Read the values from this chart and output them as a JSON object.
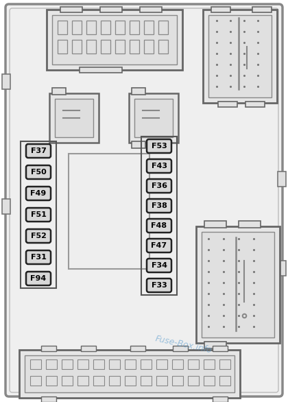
{
  "bg_color": "#f0f0f0",
  "border_color": "#555555",
  "fuse_bg": "#d8d8d8",
  "fuse_border": "#222222",
  "left_fuses": [
    "F37",
    "F50",
    "F49",
    "F51",
    "F52",
    "F31",
    "F94"
  ],
  "right_fuses": [
    "F53",
    "F43",
    "F36",
    "F38",
    "F48",
    "F47",
    "F34",
    "F33"
  ],
  "watermark": "Fuse-Box.info",
  "watermark_color": "#5599cc",
  "outer_bg": "#f0f0f0",
  "connector_bg": "#e8e8e8",
  "connector_ec": "#666666",
  "relay_bg": "#e4e4e4",
  "dot_color": "#888888",
  "dash_ec": "#888888",
  "white_bg": "#ffffff"
}
